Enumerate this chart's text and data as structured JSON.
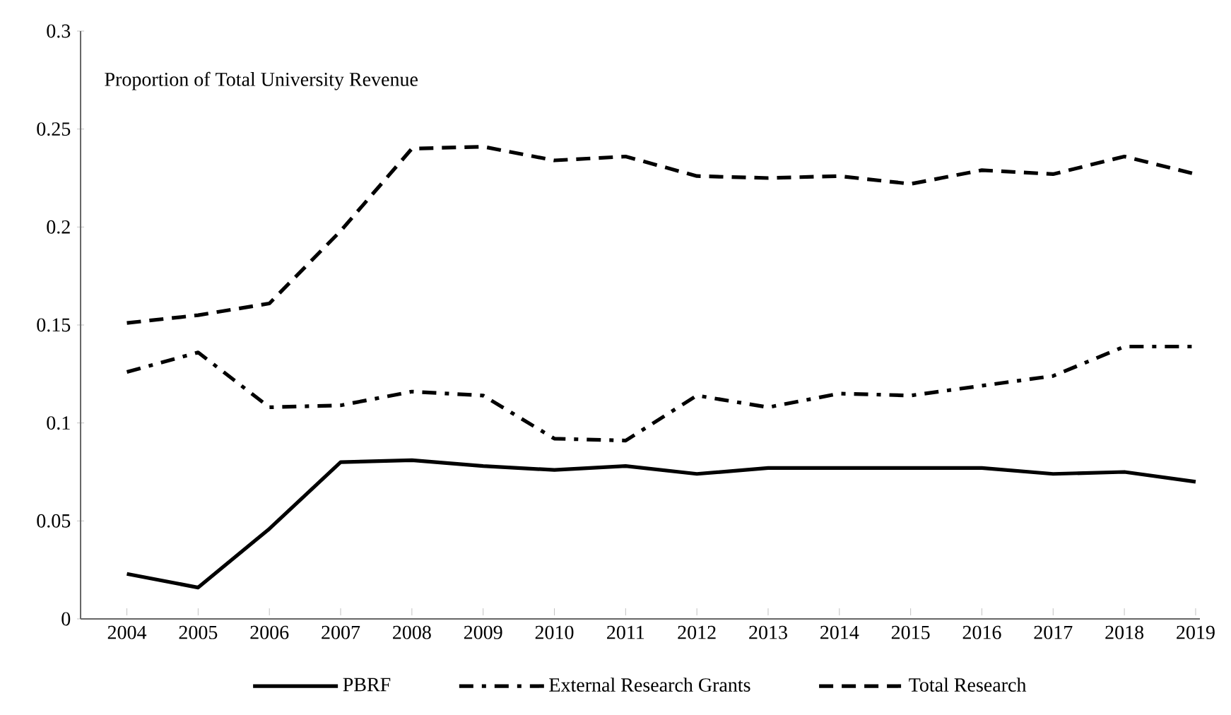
{
  "chart_data": {
    "type": "line",
    "ylabel": "Proportion of Total University Revenue",
    "categories": [
      "2004",
      "2005",
      "2006",
      "2007",
      "2008",
      "2009",
      "2010",
      "2011",
      "2012",
      "2013",
      "2014",
      "2015",
      "2016",
      "2017",
      "2018",
      "2019"
    ],
    "series": [
      {
        "name": "PBRF",
        "color": "#000000",
        "line_style": "solid",
        "values": [
          0.023,
          0.016,
          0.046,
          0.08,
          0.081,
          0.078,
          0.076,
          0.078,
          0.074,
          0.077,
          0.077,
          0.077,
          0.077,
          0.074,
          0.075,
          0.07
        ]
      },
      {
        "name": "External Research Grants",
        "color": "#000000",
        "line_style": "dashdot",
        "values": [
          0.126,
          0.136,
          0.108,
          0.109,
          0.116,
          0.114,
          0.092,
          0.091,
          0.114,
          0.108,
          0.115,
          0.114,
          0.119,
          0.124,
          0.139,
          0.139
        ]
      },
      {
        "name": "Total Research",
        "color": "#000000",
        "line_style": "dashed",
        "values": [
          0.151,
          0.155,
          0.161,
          0.198,
          0.24,
          0.241,
          0.234,
          0.236,
          0.226,
          0.225,
          0.226,
          0.222,
          0.229,
          0.227,
          0.236,
          0.227
        ]
      }
    ],
    "ylim": [
      0,
      0.3
    ],
    "yticks": [
      0,
      0.05,
      0.1,
      0.15,
      0.2,
      0.25,
      0.3
    ],
    "grid": false,
    "legend": "bottom",
    "marker": "none"
  }
}
